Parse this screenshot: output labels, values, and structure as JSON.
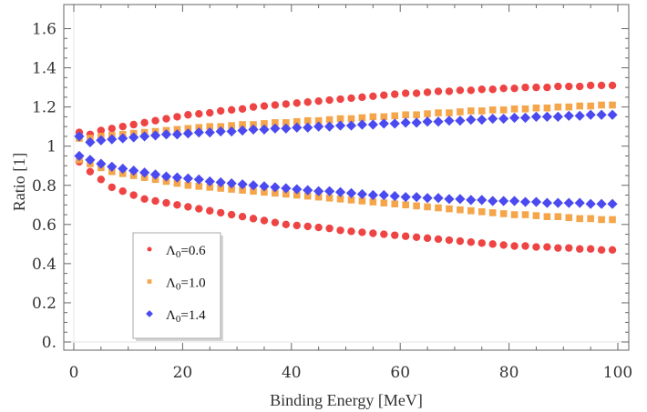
{
  "chart_data": {
    "type": "scatter",
    "xlabel": "Binding Energy [MeV]",
    "ylabel": "Ratio [1]",
    "xlim": [
      -2,
      101
    ],
    "ylim": [
      -0.05,
      1.7
    ],
    "xticks": [
      0,
      20,
      40,
      60,
      80,
      100
    ],
    "xtick_labels": [
      "0",
      "20",
      "40",
      "60",
      "80",
      "100"
    ],
    "yticks": [
      0.0,
      0.2,
      0.4,
      0.6,
      0.8,
      1.0,
      1.2,
      1.4,
      1.6
    ],
    "ytick_labels": [
      "0.",
      "0.2",
      "0.4",
      "0.6",
      "0.8",
      "1",
      "1.2",
      "1.4",
      "1.6"
    ],
    "grid": false,
    "legend_position": "bottom-left",
    "x": [
      1,
      3,
      5,
      7,
      9,
      11,
      13,
      15,
      17,
      19,
      21,
      23,
      25,
      27,
      29,
      31,
      33,
      35,
      37,
      39,
      41,
      43,
      45,
      47,
      49,
      51,
      53,
      55,
      57,
      59,
      61,
      63,
      65,
      67,
      69,
      71,
      73,
      75,
      77,
      79,
      81,
      83,
      85,
      87,
      89,
      91,
      93,
      95,
      97,
      99
    ],
    "series": [
      {
        "name": "Λ0=0.6",
        "legend_main": "Λ",
        "legend_sub": "0",
        "legend_value": "=0.6",
        "color": "#ee4444",
        "marker": "circle",
        "upper": [
          1.07,
          1.06,
          1.08,
          1.09,
          1.1,
          1.11,
          1.12,
          1.13,
          1.14,
          1.15,
          1.16,
          1.165,
          1.17,
          1.18,
          1.185,
          1.19,
          1.2,
          1.205,
          1.21,
          1.215,
          1.22,
          1.225,
          1.23,
          1.235,
          1.24,
          1.245,
          1.25,
          1.255,
          1.26,
          1.265,
          1.27,
          1.27,
          1.275,
          1.28,
          1.28,
          1.285,
          1.285,
          1.29,
          1.29,
          1.295,
          1.295,
          1.3,
          1.3,
          1.3,
          1.305,
          1.305,
          1.305,
          1.31,
          1.31,
          1.31
        ],
        "lower": [
          0.92,
          0.87,
          0.83,
          0.79,
          0.77,
          0.75,
          0.73,
          0.72,
          0.71,
          0.7,
          0.69,
          0.68,
          0.67,
          0.66,
          0.65,
          0.64,
          0.63,
          0.62,
          0.61,
          0.6,
          0.595,
          0.59,
          0.585,
          0.58,
          0.57,
          0.565,
          0.56,
          0.555,
          0.55,
          0.545,
          0.54,
          0.535,
          0.53,
          0.525,
          0.52,
          0.515,
          0.51,
          0.505,
          0.5,
          0.495,
          0.49,
          0.49,
          0.485,
          0.485,
          0.48,
          0.48,
          0.475,
          0.475,
          0.47,
          0.47
        ]
      },
      {
        "name": "Λ0=1.0",
        "legend_main": "Λ",
        "legend_sub": "0",
        "legend_value": "=1.0",
        "color": "#f5a54a",
        "marker": "square",
        "upper": [
          1.04,
          1.04,
          1.05,
          1.055,
          1.06,
          1.065,
          1.07,
          1.075,
          1.08,
          1.085,
          1.09,
          1.095,
          1.1,
          1.1,
          1.105,
          1.11,
          1.11,
          1.115,
          1.12,
          1.12,
          1.125,
          1.13,
          1.13,
          1.135,
          1.14,
          1.14,
          1.145,
          1.15,
          1.15,
          1.155,
          1.16,
          1.16,
          1.165,
          1.17,
          1.17,
          1.175,
          1.18,
          1.18,
          1.185,
          1.185,
          1.19,
          1.19,
          1.195,
          1.195,
          1.2,
          1.2,
          1.205,
          1.205,
          1.21,
          1.21
        ],
        "lower": [
          0.93,
          0.91,
          0.89,
          0.87,
          0.86,
          0.85,
          0.84,
          0.83,
          0.82,
          0.81,
          0.8,
          0.795,
          0.79,
          0.785,
          0.78,
          0.775,
          0.77,
          0.765,
          0.76,
          0.755,
          0.75,
          0.745,
          0.74,
          0.735,
          0.73,
          0.725,
          0.72,
          0.715,
          0.71,
          0.705,
          0.7,
          0.695,
          0.69,
          0.685,
          0.68,
          0.675,
          0.67,
          0.665,
          0.66,
          0.655,
          0.65,
          0.65,
          0.645,
          0.64,
          0.64,
          0.635,
          0.63,
          0.63,
          0.625,
          0.625
        ]
      },
      {
        "name": "Λ0=1.4",
        "legend_main": "Λ",
        "legend_sub": "0",
        "legend_value": "=1.4",
        "color": "#4a4af0",
        "marker": "diamond",
        "upper": [
          1.05,
          1.02,
          1.03,
          1.035,
          1.04,
          1.045,
          1.05,
          1.055,
          1.06,
          1.06,
          1.065,
          1.07,
          1.07,
          1.075,
          1.075,
          1.08,
          1.085,
          1.085,
          1.09,
          1.09,
          1.095,
          1.095,
          1.1,
          1.1,
          1.105,
          1.105,
          1.11,
          1.11,
          1.115,
          1.115,
          1.12,
          1.12,
          1.125,
          1.125,
          1.13,
          1.13,
          1.135,
          1.135,
          1.14,
          1.14,
          1.145,
          1.145,
          1.15,
          1.15,
          1.15,
          1.155,
          1.155,
          1.16,
          1.16,
          1.16
        ],
        "lower": [
          0.95,
          0.93,
          0.91,
          0.895,
          0.885,
          0.875,
          0.865,
          0.855,
          0.845,
          0.84,
          0.835,
          0.83,
          0.82,
          0.815,
          0.81,
          0.805,
          0.8,
          0.795,
          0.79,
          0.785,
          0.78,
          0.775,
          0.77,
          0.77,
          0.765,
          0.76,
          0.755,
          0.75,
          0.75,
          0.745,
          0.74,
          0.74,
          0.735,
          0.735,
          0.73,
          0.73,
          0.725,
          0.725,
          0.72,
          0.72,
          0.72,
          0.715,
          0.715,
          0.71,
          0.71,
          0.71,
          0.71,
          0.705,
          0.705,
          0.705
        ]
      }
    ]
  }
}
